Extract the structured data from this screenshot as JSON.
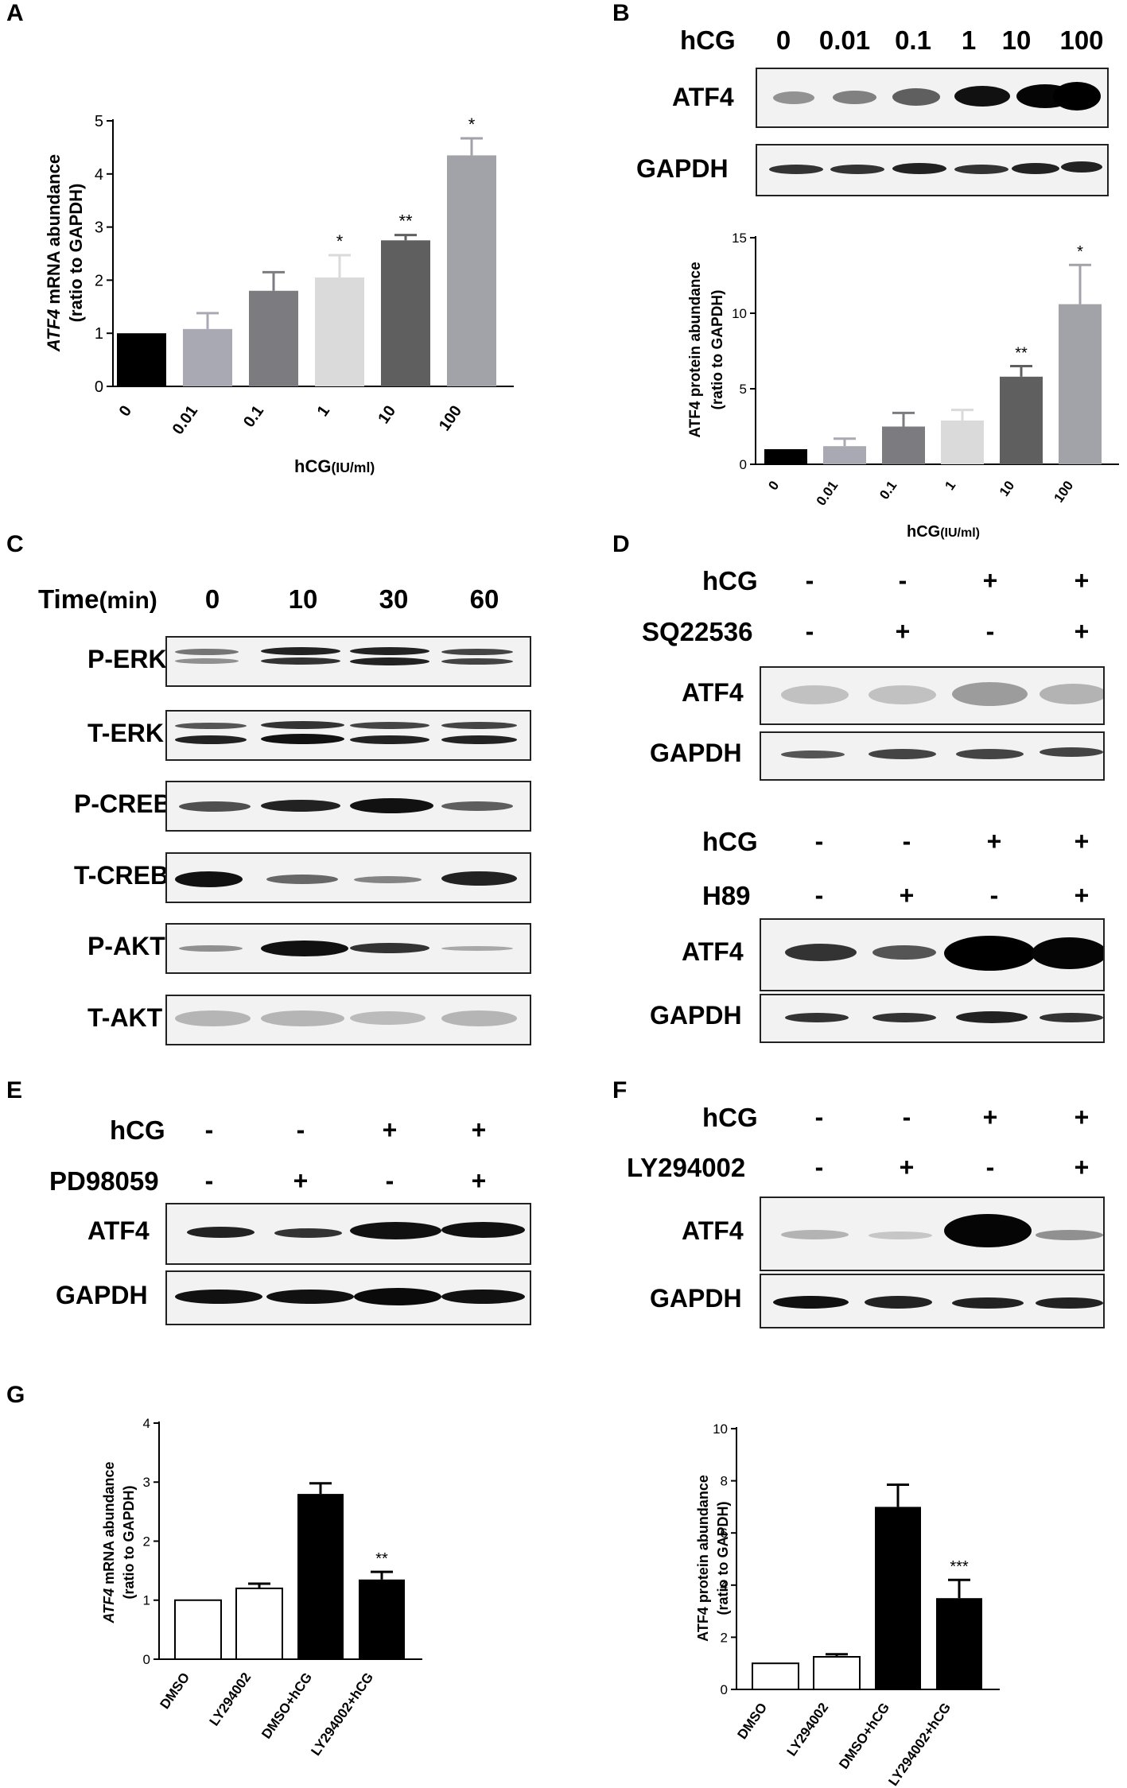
{
  "panels": {
    "A": "A",
    "B": "B",
    "C": "C",
    "D": "D",
    "E": "E",
    "F": "F",
    "G": "G"
  },
  "chart_data": [
    {
      "id": "A",
      "type": "bar",
      "ylabel_italic": "ATF4",
      "ylabel_rest": " mRNA abundance",
      "ylabel2": "(ratio to GAPDH)",
      "xlabel_main": "hCG",
      "xlabel_unit": "(IU/ml)",
      "categories": [
        "0",
        "0.01",
        "0.1",
        "1",
        "10",
        "100"
      ],
      "values": [
        1.0,
        1.08,
        1.8,
        2.05,
        2.75,
        4.35
      ],
      "errors": [
        0,
        0.3,
        0.35,
        0.42,
        0.1,
        0.32
      ],
      "sig": [
        "",
        "",
        "",
        "*",
        "**",
        "*"
      ],
      "colors": [
        "#000000",
        "#a9a9b4",
        "#7c7c80",
        "#dadada",
        "#5f5f5f",
        "#a2a2a9"
      ],
      "ylim": [
        0,
        5
      ],
      "yticks": [
        0,
        1,
        2,
        3,
        4,
        5
      ]
    },
    {
      "id": "B",
      "type": "bar",
      "ylabel": "ATF4 protein abundance",
      "ylabel2": "(ratio to GAPDH)",
      "xlabel_main": "hCG",
      "xlabel_unit": "(IU/ml)",
      "categories": [
        "0",
        "0.01",
        "0.1",
        "1",
        "10",
        "100"
      ],
      "values": [
        1.0,
        1.2,
        2.5,
        2.9,
        5.8,
        10.6
      ],
      "errors": [
        0,
        0.5,
        0.9,
        0.7,
        0.7,
        2.6
      ],
      "sig": [
        "",
        "",
        "",
        "",
        "**",
        "*"
      ],
      "colors": [
        "#000000",
        "#a9a9b4",
        "#7c7c80",
        "#dadada",
        "#5f5f5f",
        "#a2a2a9"
      ],
      "ylim": [
        0,
        15
      ],
      "yticks": [
        0,
        5,
        10,
        15
      ]
    },
    {
      "id": "G1",
      "type": "bar",
      "ylabel_italic": "ATF4",
      "ylabel_rest": " mRNA abundance",
      "ylabel2": "(ratio to GAPDH)",
      "categories": [
        "DMSO",
        "LY294002",
        "DMSO+hCG",
        "LY294002+hCG"
      ],
      "values": [
        1.0,
        1.2,
        2.8,
        1.35
      ],
      "errors": [
        0,
        0.08,
        0.18,
        0.13
      ],
      "sig": [
        "",
        "",
        "",
        "**"
      ],
      "colors": [
        "#ffffff",
        "#ffffff",
        "#000000",
        "#000000"
      ],
      "ylim": [
        0,
        4
      ],
      "yticks": [
        0,
        1,
        2,
        3,
        4
      ]
    },
    {
      "id": "G2",
      "type": "bar",
      "ylabel": "ATF4 protein abundance",
      "ylabel2": "(ratio to GAPDH)",
      "categories": [
        "DMSO",
        "LY294002",
        "DMSO+hCG",
        "LY294002+hCG"
      ],
      "values": [
        1.0,
        1.25,
        7.0,
        3.5
      ],
      "errors": [
        0,
        0.1,
        0.85,
        0.7
      ],
      "sig": [
        "",
        "",
        "",
        "***"
      ],
      "colors": [
        "#ffffff",
        "#ffffff",
        "#000000",
        "#000000"
      ],
      "ylim": [
        0,
        10
      ],
      "yticks": [
        0,
        2,
        4,
        6,
        8,
        10
      ]
    }
  ],
  "blotB": {
    "hcg_label": "hCG",
    "concs": [
      "0",
      "0.01",
      "0.1",
      "1",
      "10",
      "100"
    ],
    "atf4": "ATF4",
    "gapdh": "GAPDH"
  },
  "blotC": {
    "time_label": "Time",
    "time_unit": "(min)",
    "times": [
      "0",
      "10",
      "30",
      "60"
    ],
    "rows": [
      "P-ERK",
      "T-ERK",
      "P-CREB",
      "T-CREB",
      "P-AKT",
      "T-AKT"
    ]
  },
  "blotD1": {
    "row1": "hCG",
    "row2": "SQ22536",
    "signs1": [
      "-",
      "-",
      "+",
      "+"
    ],
    "signs2": [
      "-",
      "+",
      "-",
      "+"
    ],
    "atf4": "ATF4",
    "gapdh": "GAPDH"
  },
  "blotD2": {
    "row1": "hCG",
    "row2": "H89",
    "signs1": [
      "-",
      "-",
      "+",
      "+"
    ],
    "signs2": [
      "-",
      "+",
      "-",
      "+"
    ],
    "atf4": "ATF4",
    "gapdh": "GAPDH"
  },
  "blotE": {
    "row1": "hCG",
    "row2": "PD98059",
    "signs1": [
      "-",
      "-",
      "+",
      "+"
    ],
    "signs2": [
      "-",
      "+",
      "-",
      "+"
    ],
    "atf4": "ATF4",
    "gapdh": "GAPDH"
  },
  "blotF": {
    "row1": "hCG",
    "row2": "LY294002",
    "signs1": [
      "-",
      "-",
      "+",
      "+"
    ],
    "signs2": [
      "-",
      "+",
      "-",
      "+"
    ],
    "atf4": "ATF4",
    "gapdh": "GAPDH"
  }
}
